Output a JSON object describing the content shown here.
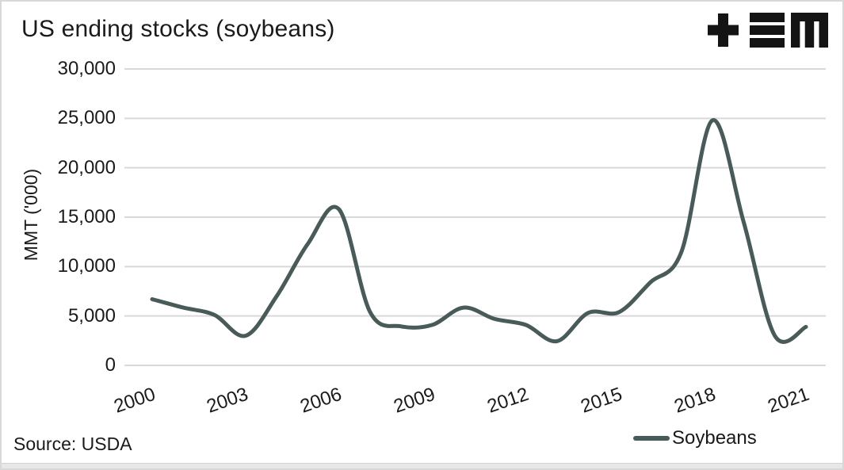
{
  "header": {
    "title": "US ending stocks (soybeans)",
    "logo_name": "tem-logo"
  },
  "axes": {
    "y_title": "MMT ('000)"
  },
  "footer": {
    "source": "Source: USDA"
  },
  "legend": {
    "label": "Soybeans"
  },
  "colors": {
    "line": "#485b59",
    "grid": "#d9d9d9",
    "text": "#1a1a1a",
    "logo": "#141414"
  },
  "chart_data": {
    "type": "line",
    "title": "US ending stocks (soybeans)",
    "xlabel": "",
    "ylabel": "MMT ('000)",
    "x": [
      2000,
      2001,
      2002,
      2003,
      2004,
      2005,
      2006,
      2007,
      2008,
      2009,
      2010,
      2011,
      2012,
      2013,
      2014,
      2015,
      2016,
      2017,
      2018,
      2019,
      2020,
      2021
    ],
    "series": [
      {
        "name": "Soybeans",
        "values": [
          6700,
          5850,
          5100,
          3000,
          7000,
          12300,
          15800,
          5400,
          3950,
          4100,
          5850,
          4700,
          4100,
          2450,
          5300,
          5400,
          8400,
          11500,
          24800,
          14500,
          3000,
          3900
        ]
      }
    ],
    "x_tick_labels": [
      "2000",
      "2003",
      "2006",
      "2009",
      "2012",
      "2015",
      "2018",
      "2021"
    ],
    "y_ticks": [
      0,
      5000,
      10000,
      15000,
      20000,
      25000,
      30000
    ],
    "ylim": [
      0,
      30000
    ],
    "xlim": [
      2000,
      2021
    ],
    "grid": "horizontal",
    "legend_position": "bottom-right",
    "smoothing": "spline",
    "source": "Source: USDA"
  }
}
